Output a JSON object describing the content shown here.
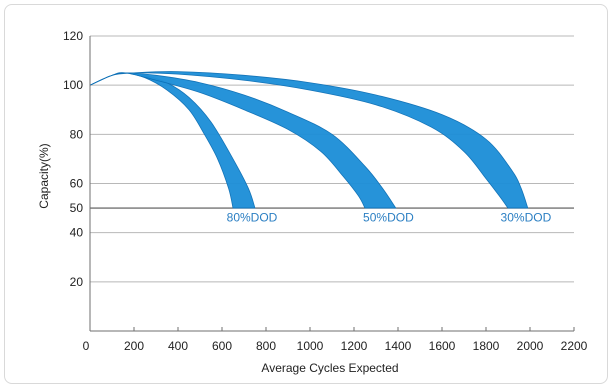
{
  "chart_data": {
    "type": "area",
    "title": "",
    "xlabel": "Average Cycles Expected",
    "ylabel": "Capacity(%)",
    "xlim": [
      0,
      2200
    ],
    "ylim": [
      0,
      120
    ],
    "x_ticks": [
      0,
      200,
      400,
      600,
      800,
      1000,
      1200,
      1400,
      1600,
      1800,
      2000,
      2200
    ],
    "y_ticks": [
      20,
      40,
      50,
      60,
      80,
      100,
      120
    ],
    "grid": "horizontal",
    "reference_line": 50,
    "band_color": "#1e8fd8",
    "band_edge_color": "#0b6fb6",
    "series": [
      {
        "name": "80%DOD",
        "label": "80%DOD",
        "upper": [
          [
            0,
            100
          ],
          [
            100,
            104
          ],
          [
            160,
            105
          ],
          [
            250,
            104
          ],
          [
            350,
            101
          ],
          [
            450,
            95
          ],
          [
            550,
            85
          ],
          [
            650,
            70
          ],
          [
            720,
            58
          ],
          [
            750,
            50
          ]
        ],
        "lower": [
          [
            0,
            100
          ],
          [
            100,
            104
          ],
          [
            160,
            105
          ],
          [
            250,
            103
          ],
          [
            350,
            98
          ],
          [
            450,
            90
          ],
          [
            520,
            80
          ],
          [
            580,
            70
          ],
          [
            630,
            58
          ],
          [
            650,
            50
          ]
        ]
      },
      {
        "name": "50%DOD",
        "label": "50%DOD",
        "upper": [
          [
            0,
            100
          ],
          [
            100,
            104
          ],
          [
            160,
            105
          ],
          [
            300,
            104
          ],
          [
            500,
            101
          ],
          [
            700,
            96
          ],
          [
            900,
            89
          ],
          [
            1100,
            80
          ],
          [
            1250,
            67
          ],
          [
            1330,
            58
          ],
          [
            1390,
            50
          ]
        ],
        "lower": [
          [
            0,
            100
          ],
          [
            100,
            104
          ],
          [
            160,
            105
          ],
          [
            300,
            102
          ],
          [
            500,
            97
          ],
          [
            700,
            90
          ],
          [
            900,
            82
          ],
          [
            1050,
            73
          ],
          [
            1150,
            63
          ],
          [
            1220,
            55
          ],
          [
            1250,
            50
          ]
        ]
      },
      {
        "name": "30%DOD",
        "label": "30%DOD",
        "upper": [
          [
            0,
            100
          ],
          [
            100,
            104
          ],
          [
            200,
            105
          ],
          [
            400,
            105.5
          ],
          [
            700,
            104
          ],
          [
            1000,
            101
          ],
          [
            1300,
            96
          ],
          [
            1600,
            88
          ],
          [
            1800,
            78
          ],
          [
            1920,
            65
          ],
          [
            1960,
            58
          ],
          [
            1990,
            50
          ]
        ],
        "lower": [
          [
            0,
            100
          ],
          [
            100,
            104
          ],
          [
            200,
            105
          ],
          [
            400,
            104.5
          ],
          [
            700,
            102
          ],
          [
            1000,
            98
          ],
          [
            1300,
            92
          ],
          [
            1550,
            83
          ],
          [
            1700,
            73
          ],
          [
            1800,
            62
          ],
          [
            1860,
            55
          ],
          [
            1900,
            50
          ]
        ]
      }
    ]
  }
}
